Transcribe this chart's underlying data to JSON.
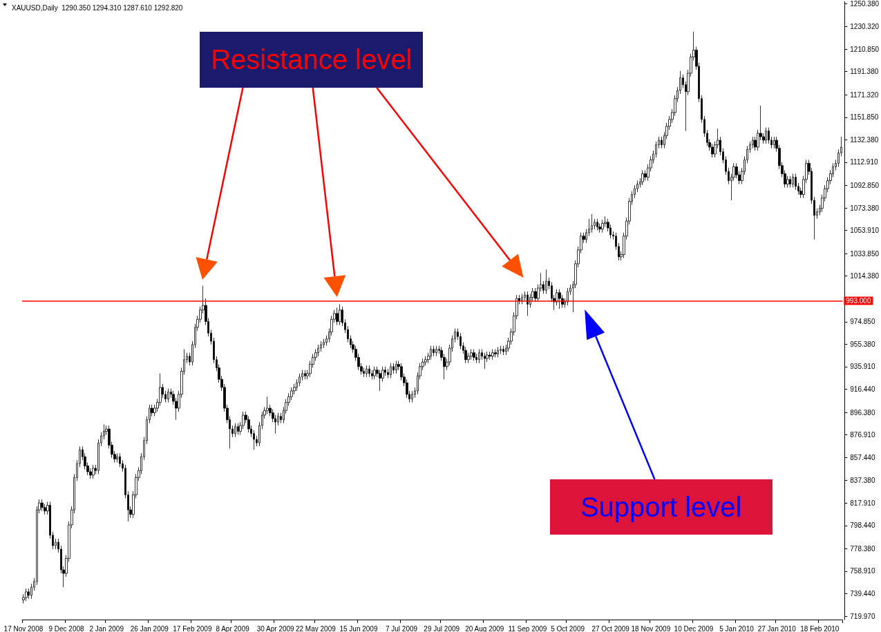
{
  "chart_data": {
    "type": "candlestick",
    "title": "XAUUSD,Daily  1290.350 1294.310 1287.610 1292.820",
    "categories": [
      "17 Nov 2008",
      null,
      null,
      null,
      null,
      null,
      null,
      null,
      null,
      null,
      null,
      null,
      null,
      null,
      null,
      null,
      "9 Dec 2008",
      null,
      null,
      null,
      null,
      null,
      null,
      null,
      null,
      null,
      null,
      null,
      null,
      null,
      null,
      "2 Jan 2009",
      null,
      null,
      null,
      null,
      null,
      null,
      null,
      null,
      null,
      null,
      null,
      null,
      null,
      null,
      null,
      "26 Jan 2009",
      null,
      null,
      null,
      null,
      null,
      null,
      null,
      null,
      null,
      null,
      null,
      null,
      null,
      null,
      null,
      "17 Feb 2009",
      null,
      null,
      null,
      null,
      null,
      null,
      null,
      null,
      null,
      null,
      null,
      null,
      null,
      null,
      "8 Apr 2009",
      null,
      null,
      null,
      null,
      null,
      null,
      null,
      null,
      null,
      null,
      null,
      null,
      null,
      null,
      null,
      "30 Apr 2009",
      null,
      null,
      null,
      null,
      null,
      null,
      null,
      null,
      null,
      null,
      null,
      null,
      null,
      null,
      "22 May 2009",
      null,
      null,
      null,
      null,
      null,
      null,
      null,
      null,
      null,
      null,
      null,
      null,
      null,
      null,
      null,
      "15 Jun 2009",
      null,
      null,
      null,
      null,
      null,
      null,
      null,
      null,
      null,
      null,
      null,
      null,
      null,
      null,
      null,
      "7 Jul 2009",
      null,
      null,
      null,
      null,
      null,
      null,
      null,
      null,
      null,
      null,
      null,
      null,
      null,
      null,
      "29 Jul 2009",
      null,
      null,
      null,
      null,
      null,
      null,
      null,
      null,
      null,
      null,
      null,
      null,
      null,
      null,
      null,
      "20 Aug 2009",
      null,
      null,
      null,
      null,
      null,
      null,
      null,
      null,
      null,
      null,
      null,
      null,
      null,
      null,
      null,
      "11 Sep 2009",
      null,
      null,
      null,
      null,
      null,
      null,
      null,
      null,
      null,
      null,
      null,
      null,
      null,
      null,
      "5 Oct 2009",
      null,
      null,
      null,
      null,
      null,
      null,
      null,
      null,
      null,
      null,
      null,
      null,
      null,
      null,
      null,
      "27 Oct 2009",
      null,
      null,
      null,
      null,
      null,
      null,
      null,
      null,
      null,
      null,
      null,
      null,
      null,
      null,
      "18 Nov 2009",
      null,
      null,
      null,
      null,
      null,
      null,
      null,
      null,
      null,
      null,
      null,
      null,
      null,
      null,
      null,
      "10 Dec 2009",
      null,
      null,
      null,
      null,
      null,
      null,
      null,
      null,
      null,
      null,
      null,
      null,
      null,
      null,
      null,
      "5 Jan 2010",
      null,
      null,
      null,
      null,
      null,
      null,
      null,
      null,
      null,
      null,
      null,
      null,
      null,
      null,
      "27 Jan 2010",
      null,
      null,
      null,
      null,
      null,
      null,
      null,
      null,
      null,
      null,
      null,
      null,
      null,
      null,
      null,
      "18 Feb 2010",
      null,
      null,
      null,
      null,
      null,
      null,
      null,
      null
    ],
    "ohlc": [
      [
        734,
        739,
        731,
        736
      ],
      [
        736,
        744,
        733,
        741
      ],
      [
        741,
        744,
        735,
        738
      ],
      [
        738,
        748,
        735,
        745
      ],
      [
        745,
        753,
        742,
        750
      ],
      [
        750,
        815,
        747,
        812
      ],
      [
        812,
        821,
        809,
        818
      ],
      [
        818,
        821,
        811,
        814
      ],
      [
        814,
        817,
        808,
        811
      ],
      [
        811,
        819,
        808,
        816
      ],
      [
        816,
        819,
        787,
        790
      ],
      [
        790,
        793,
        778,
        781
      ],
      [
        781,
        787,
        778,
        784
      ],
      [
        784,
        787,
        775,
        778
      ],
      [
        778,
        781,
        757,
        760
      ],
      [
        760,
        763,
        745,
        757
      ],
      [
        757,
        773,
        754,
        770
      ],
      [
        770,
        802,
        767,
        799
      ],
      [
        799,
        815,
        796,
        812
      ],
      [
        812,
        843,
        809,
        840
      ],
      [
        840,
        855,
        837,
        852
      ],
      [
        852,
        867,
        849,
        864
      ],
      [
        864,
        867,
        855,
        858
      ],
      [
        858,
        861,
        847,
        850
      ],
      [
        850,
        853,
        842,
        845
      ],
      [
        845,
        848,
        839,
        842
      ],
      [
        842,
        851,
        839,
        848
      ],
      [
        848,
        851,
        843,
        846
      ],
      [
        846,
        873,
        843,
        870
      ],
      [
        870,
        879,
        867,
        876
      ],
      [
        876,
        886,
        873,
        880
      ],
      [
        880,
        885,
        877,
        882
      ],
      [
        882,
        885,
        865,
        868
      ],
      [
        868,
        871,
        857,
        860
      ],
      [
        860,
        863,
        853,
        856
      ],
      [
        856,
        861,
        853,
        858
      ],
      [
        858,
        861,
        849,
        852
      ],
      [
        852,
        855,
        845,
        848
      ],
      [
        848,
        851,
        822,
        825
      ],
      [
        825,
        828,
        802,
        812
      ],
      [
        812,
        815,
        805,
        808
      ],
      [
        808,
        828,
        805,
        825
      ],
      [
        825,
        843,
        822,
        840
      ],
      [
        840,
        849,
        837,
        846
      ],
      [
        846,
        861,
        843,
        858
      ],
      [
        858,
        875,
        855,
        872
      ],
      [
        872,
        893,
        869,
        890
      ],
      [
        890,
        903,
        887,
        900
      ],
      [
        900,
        903,
        893,
        896
      ],
      [
        896,
        903,
        893,
        900
      ],
      [
        900,
        908,
        897,
        905
      ],
      [
        905,
        930,
        902,
        918
      ],
      [
        918,
        921,
        909,
        912
      ],
      [
        912,
        915,
        905,
        908
      ],
      [
        908,
        917,
        905,
        914
      ],
      [
        914,
        917,
        909,
        912
      ],
      [
        912,
        915,
        903,
        906
      ],
      [
        906,
        909,
        890,
        900
      ],
      [
        900,
        915,
        897,
        912
      ],
      [
        912,
        935,
        909,
        932
      ],
      [
        932,
        951,
        929,
        942
      ],
      [
        942,
        948,
        939,
        945
      ],
      [
        945,
        948,
        937,
        940
      ],
      [
        940,
        958,
        937,
        955
      ],
      [
        955,
        973,
        952,
        970
      ],
      [
        970,
        980,
        967,
        977
      ],
      [
        977,
        988,
        974,
        985
      ],
      [
        985,
        1006,
        982,
        989
      ],
      [
        989,
        995,
        972,
        975
      ],
      [
        975,
        978,
        962,
        965
      ],
      [
        965,
        968,
        955,
        958
      ],
      [
        958,
        961,
        939,
        942
      ],
      [
        942,
        945,
        932,
        935
      ],
      [
        935,
        938,
        922,
        925
      ],
      [
        925,
        928,
        915,
        918
      ],
      [
        918,
        921,
        897,
        900
      ],
      [
        900,
        903,
        887,
        890
      ],
      [
        890,
        893,
        865,
        882
      ],
      [
        882,
        885,
        875,
        878
      ],
      [
        878,
        887,
        875,
        884
      ],
      [
        884,
        887,
        877,
        880
      ],
      [
        880,
        888,
        877,
        885
      ],
      [
        885,
        897,
        882,
        894
      ],
      [
        894,
        897,
        887,
        890
      ],
      [
        890,
        893,
        879,
        882
      ],
      [
        882,
        885,
        875,
        878
      ],
      [
        878,
        881,
        864,
        873
      ],
      [
        873,
        876,
        867,
        870
      ],
      [
        870,
        888,
        867,
        885
      ],
      [
        885,
        897,
        882,
        894
      ],
      [
        894,
        901,
        891,
        898
      ],
      [
        898,
        910,
        895,
        900
      ],
      [
        900,
        903,
        893,
        896
      ],
      [
        896,
        899,
        888,
        891
      ],
      [
        891,
        894,
        878,
        888
      ],
      [
        888,
        896,
        885,
        893
      ],
      [
        893,
        896,
        887,
        890
      ],
      [
        890,
        901,
        887,
        898
      ],
      [
        898,
        908,
        895,
        905
      ],
      [
        905,
        913,
        902,
        910
      ],
      [
        910,
        918,
        907,
        915
      ],
      [
        915,
        921,
        912,
        918
      ],
      [
        918,
        925,
        915,
        922
      ],
      [
        922,
        930,
        919,
        927
      ],
      [
        927,
        933,
        924,
        930
      ],
      [
        930,
        933,
        925,
        928
      ],
      [
        928,
        933,
        925,
        930
      ],
      [
        930,
        941,
        927,
        938
      ],
      [
        938,
        947,
        935,
        944
      ],
      [
        944,
        951,
        941,
        948
      ],
      [
        948,
        955,
        945,
        952
      ],
      [
        952,
        958,
        949,
        955
      ],
      [
        955,
        960,
        952,
        957
      ],
      [
        957,
        963,
        954,
        960
      ],
      [
        960,
        969,
        957,
        966
      ],
      [
        966,
        980,
        963,
        977
      ],
      [
        977,
        985,
        974,
        982
      ],
      [
        982,
        987,
        972,
        975
      ],
      [
        975,
        990,
        972,
        985
      ],
      [
        985,
        988,
        971,
        974
      ],
      [
        974,
        977,
        965,
        968
      ],
      [
        968,
        971,
        957,
        960
      ],
      [
        960,
        963,
        952,
        955
      ],
      [
        955,
        958,
        948,
        951
      ],
      [
        951,
        954,
        941,
        944
      ],
      [
        944,
        947,
        933,
        936
      ],
      [
        936,
        939,
        929,
        932
      ],
      [
        932,
        935,
        927,
        930
      ],
      [
        930,
        937,
        927,
        934
      ],
      [
        934,
        937,
        927,
        930
      ],
      [
        930,
        933,
        925,
        928
      ],
      [
        928,
        936,
        925,
        933
      ],
      [
        933,
        936,
        927,
        930
      ],
      [
        930,
        933,
        915,
        926
      ],
      [
        926,
        936,
        923,
        933
      ],
      [
        933,
        936,
        928,
        931
      ],
      [
        931,
        934,
        926,
        929
      ],
      [
        929,
        939,
        926,
        936
      ],
      [
        936,
        939,
        930,
        933
      ],
      [
        933,
        941,
        930,
        938
      ],
      [
        938,
        941,
        933,
        936
      ],
      [
        936,
        939,
        924,
        927
      ],
      [
        927,
        930,
        919,
        922
      ],
      [
        922,
        925,
        909,
        912
      ],
      [
        912,
        915,
        905,
        908
      ],
      [
        908,
        915,
        905,
        912
      ],
      [
        912,
        918,
        909,
        915
      ],
      [
        915,
        931,
        912,
        928
      ],
      [
        928,
        939,
        925,
        936
      ],
      [
        936,
        943,
        933,
        940
      ],
      [
        940,
        945,
        937,
        942
      ],
      [
        942,
        948,
        939,
        945
      ],
      [
        945,
        954,
        942,
        951
      ],
      [
        951,
        954,
        945,
        948
      ],
      [
        948,
        954,
        945,
        951
      ],
      [
        951,
        954,
        947,
        950
      ],
      [
        950,
        953,
        941,
        944
      ],
      [
        944,
        947,
        925,
        936
      ],
      [
        936,
        943,
        933,
        940
      ],
      [
        940,
        955,
        937,
        952
      ],
      [
        952,
        963,
        949,
        960
      ],
      [
        960,
        969,
        957,
        966
      ],
      [
        966,
        969,
        959,
        962
      ],
      [
        962,
        965,
        951,
        954
      ],
      [
        954,
        957,
        947,
        950
      ],
      [
        950,
        953,
        939,
        942
      ],
      [
        942,
        948,
        939,
        945
      ],
      [
        945,
        951,
        942,
        948
      ],
      [
        948,
        951,
        941,
        944
      ],
      [
        944,
        947,
        939,
        942
      ],
      [
        942,
        951,
        939,
        948
      ],
      [
        948,
        951,
        942,
        945
      ],
      [
        945,
        948,
        934,
        943
      ],
      [
        943,
        949,
        940,
        946
      ],
      [
        946,
        949,
        942,
        945
      ],
      [
        945,
        951,
        942,
        948
      ],
      [
        948,
        951,
        944,
        947
      ],
      [
        947,
        953,
        944,
        950
      ],
      [
        950,
        954,
        947,
        951
      ],
      [
        951,
        954,
        946,
        949
      ],
      [
        949,
        955,
        946,
        952
      ],
      [
        952,
        961,
        949,
        958
      ],
      [
        958,
        969,
        955,
        966
      ],
      [
        966,
        983,
        963,
        980
      ],
      [
        980,
        998,
        977,
        995
      ],
      [
        995,
        998,
        990,
        993
      ],
      [
        993,
        999,
        990,
        996
      ],
      [
        996,
        1001,
        993,
        998
      ],
      [
        998,
        1001,
        980,
        990
      ],
      [
        990,
        999,
        987,
        996
      ],
      [
        996,
        1004,
        993,
        1001
      ],
      [
        1001,
        1004,
        992,
        995
      ],
      [
        995,
        1007,
        992,
        1004
      ],
      [
        1004,
        1017,
        1001,
        1007
      ],
      [
        1007,
        1010,
        999,
        1002
      ],
      [
        1002,
        1020,
        999,
        1010
      ],
      [
        1010,
        1013,
        1003,
        1006
      ],
      [
        1006,
        1009,
        992,
        995
      ],
      [
        995,
        998,
        985,
        992
      ],
      [
        992,
        1003,
        989,
        1000
      ],
      [
        1000,
        1003,
        986,
        995
      ],
      [
        995,
        998,
        987,
        990
      ],
      [
        990,
        995,
        987,
        992
      ],
      [
        992,
        1004,
        989,
        1001
      ],
      [
        1001,
        1007,
        998,
        1004
      ],
      [
        1004,
        1010,
        983,
        1007
      ],
      [
        1007,
        1028,
        1004,
        1025
      ],
      [
        1025,
        1040,
        1022,
        1037
      ],
      [
        1037,
        1052,
        1034,
        1049
      ],
      [
        1049,
        1052,
        1043,
        1046
      ],
      [
        1046,
        1055,
        1043,
        1052
      ],
      [
        1052,
        1064,
        1049,
        1055
      ],
      [
        1055,
        1068,
        1052,
        1058
      ],
      [
        1058,
        1064,
        1055,
        1061
      ],
      [
        1061,
        1064,
        1054,
        1057
      ],
      [
        1057,
        1060,
        1052,
        1055
      ],
      [
        1055,
        1063,
        1052,
        1060
      ],
      [
        1060,
        1066,
        1057,
        1061
      ],
      [
        1061,
        1064,
        1053,
        1056
      ],
      [
        1056,
        1059,
        1047,
        1050
      ],
      [
        1050,
        1053,
        1046,
        1049
      ],
      [
        1049,
        1052,
        1037,
        1040
      ],
      [
        1040,
        1043,
        1028,
        1031
      ],
      [
        1031,
        1036,
        1028,
        1033
      ],
      [
        1033,
        1052,
        1030,
        1049
      ],
      [
        1049,
        1065,
        1046,
        1062
      ],
      [
        1062,
        1082,
        1059,
        1079
      ],
      [
        1079,
        1088,
        1076,
        1085
      ],
      [
        1085,
        1093,
        1082,
        1090
      ],
      [
        1090,
        1097,
        1087,
        1094
      ],
      [
        1094,
        1099,
        1091,
        1096
      ],
      [
        1096,
        1106,
        1093,
        1103
      ],
      [
        1103,
        1106,
        1097,
        1100
      ],
      [
        1100,
        1111,
        1097,
        1108
      ],
      [
        1108,
        1118,
        1105,
        1115
      ],
      [
        1115,
        1123,
        1112,
        1120
      ],
      [
        1120,
        1131,
        1117,
        1128
      ],
      [
        1128,
        1135,
        1125,
        1132
      ],
      [
        1132,
        1135,
        1125,
        1128
      ],
      [
        1128,
        1139,
        1125,
        1136
      ],
      [
        1136,
        1147,
        1133,
        1144
      ],
      [
        1144,
        1153,
        1141,
        1150
      ],
      [
        1150,
        1159,
        1147,
        1156
      ],
      [
        1156,
        1171,
        1153,
        1168
      ],
      [
        1168,
        1178,
        1165,
        1175
      ],
      [
        1175,
        1192,
        1172,
        1186
      ],
      [
        1186,
        1189,
        1177,
        1180
      ],
      [
        1180,
        1183,
        1140,
        1174
      ],
      [
        1174,
        1193,
        1171,
        1190
      ],
      [
        1190,
        1207,
        1187,
        1204
      ],
      [
        1204,
        1226,
        1201,
        1210
      ],
      [
        1210,
        1213,
        1193,
        1196
      ],
      [
        1196,
        1199,
        1165,
        1168
      ],
      [
        1168,
        1171,
        1147,
        1150
      ],
      [
        1150,
        1153,
        1135,
        1138
      ],
      [
        1138,
        1141,
        1127,
        1130
      ],
      [
        1130,
        1133,
        1123,
        1126
      ],
      [
        1126,
        1129,
        1117,
        1120
      ],
      [
        1120,
        1131,
        1117,
        1128
      ],
      [
        1128,
        1142,
        1125,
        1132
      ],
      [
        1132,
        1135,
        1119,
        1122
      ],
      [
        1122,
        1125,
        1112,
        1115
      ],
      [
        1115,
        1118,
        1102,
        1105
      ],
      [
        1105,
        1108,
        1094,
        1097
      ],
      [
        1097,
        1103,
        1080,
        1100
      ],
      [
        1100,
        1112,
        1097,
        1109
      ],
      [
        1109,
        1112,
        1099,
        1102
      ],
      [
        1102,
        1105,
        1094,
        1097
      ],
      [
        1097,
        1108,
        1094,
        1105
      ],
      [
        1105,
        1118,
        1102,
        1115
      ],
      [
        1115,
        1127,
        1112,
        1124
      ],
      [
        1124,
        1131,
        1121,
        1128
      ],
      [
        1128,
        1135,
        1125,
        1132
      ],
      [
        1132,
        1135,
        1123,
        1126
      ],
      [
        1126,
        1141,
        1123,
        1138
      ],
      [
        1138,
        1162,
        1132,
        1135
      ],
      [
        1135,
        1138,
        1129,
        1132
      ],
      [
        1132,
        1143,
        1129,
        1140
      ],
      [
        1140,
        1143,
        1129,
        1132
      ],
      [
        1132,
        1135,
        1125,
        1128
      ],
      [
        1128,
        1135,
        1125,
        1132
      ],
      [
        1132,
        1135,
        1122,
        1125
      ],
      [
        1125,
        1128,
        1107,
        1110
      ],
      [
        1110,
        1113,
        1100,
        1103
      ],
      [
        1103,
        1106,
        1091,
        1094
      ],
      [
        1094,
        1101,
        1091,
        1098
      ],
      [
        1098,
        1101,
        1091,
        1094
      ],
      [
        1094,
        1103,
        1091,
        1100
      ],
      [
        1100,
        1103,
        1089,
        1092
      ],
      [
        1092,
        1095,
        1085,
        1088
      ],
      [
        1088,
        1091,
        1082,
        1085
      ],
      [
        1085,
        1101,
        1082,
        1098
      ],
      [
        1098,
        1115,
        1095,
        1112
      ],
      [
        1112,
        1115,
        1102,
        1105
      ],
      [
        1105,
        1108,
        1077,
        1080
      ],
      [
        1080,
        1083,
        1046,
        1067
      ],
      [
        1067,
        1073,
        1064,
        1070
      ],
      [
        1070,
        1076,
        1067,
        1073
      ],
      [
        1073,
        1085,
        1070,
        1082
      ],
      [
        1082,
        1093,
        1079,
        1090
      ],
      [
        1090,
        1100,
        1087,
        1097
      ],
      [
        1097,
        1106,
        1094,
        1103
      ],
      [
        1103,
        1112,
        1100,
        1109
      ],
      [
        1109,
        1115,
        1106,
        1112
      ],
      [
        1112,
        1124,
        1109,
        1121
      ],
      [
        1121,
        1135,
        1118,
        1126
      ]
    ],
    "ylim": [
      717,
      1252
    ],
    "yticks": [
      {
        "value": 719.97,
        "label": "719.970"
      },
      {
        "value": 739.44,
        "label": "739.440"
      },
      {
        "value": 758.91,
        "label": "758.910"
      },
      {
        "value": 778.38,
        "label": "778.380"
      },
      {
        "value": 798.44,
        "label": "798.440"
      },
      {
        "value": 817.91,
        "label": "817.910"
      },
      {
        "value": 837.38,
        "label": "837.380"
      },
      {
        "value": 857.44,
        "label": "857.440"
      },
      {
        "value": 876.91,
        "label": "876.910"
      },
      {
        "value": 896.38,
        "label": "896.380"
      },
      {
        "value": 916.44,
        "label": "916.440"
      },
      {
        "value": 935.91,
        "label": "935.910"
      },
      {
        "value": 955.38,
        "label": "955.380"
      },
      {
        "value": 974.85,
        "label": "974.850"
      },
      {
        "value": 1014.38,
        "label": "1014.380"
      },
      {
        "value": 1033.85,
        "label": "1033.850"
      },
      {
        "value": 1053.91,
        "label": "1053.910"
      },
      {
        "value": 1073.38,
        "label": "1073.380"
      },
      {
        "value": 1092.85,
        "label": "1092.850"
      },
      {
        "value": 1112.91,
        "label": "1112.910"
      },
      {
        "value": 1132.38,
        "label": "1132.380"
      },
      {
        "value": 1151.85,
        "label": "1151.850"
      },
      {
        "value": 1171.32,
        "label": "1171.320"
      },
      {
        "value": 1191.38,
        "label": "1191.380"
      },
      {
        "value": 1210.85,
        "label": "1210.850"
      },
      {
        "value": 1230.32,
        "label": "1230.320"
      },
      {
        "value": 1250.38,
        "label": "1250.380"
      }
    ],
    "ref_lines": [
      {
        "axis": "y",
        "value": 993,
        "label": "993.000",
        "color": "#ff0000"
      }
    ],
    "annotations": [
      "Resistance level",
      "Support level"
    ],
    "grid": false
  }
}
